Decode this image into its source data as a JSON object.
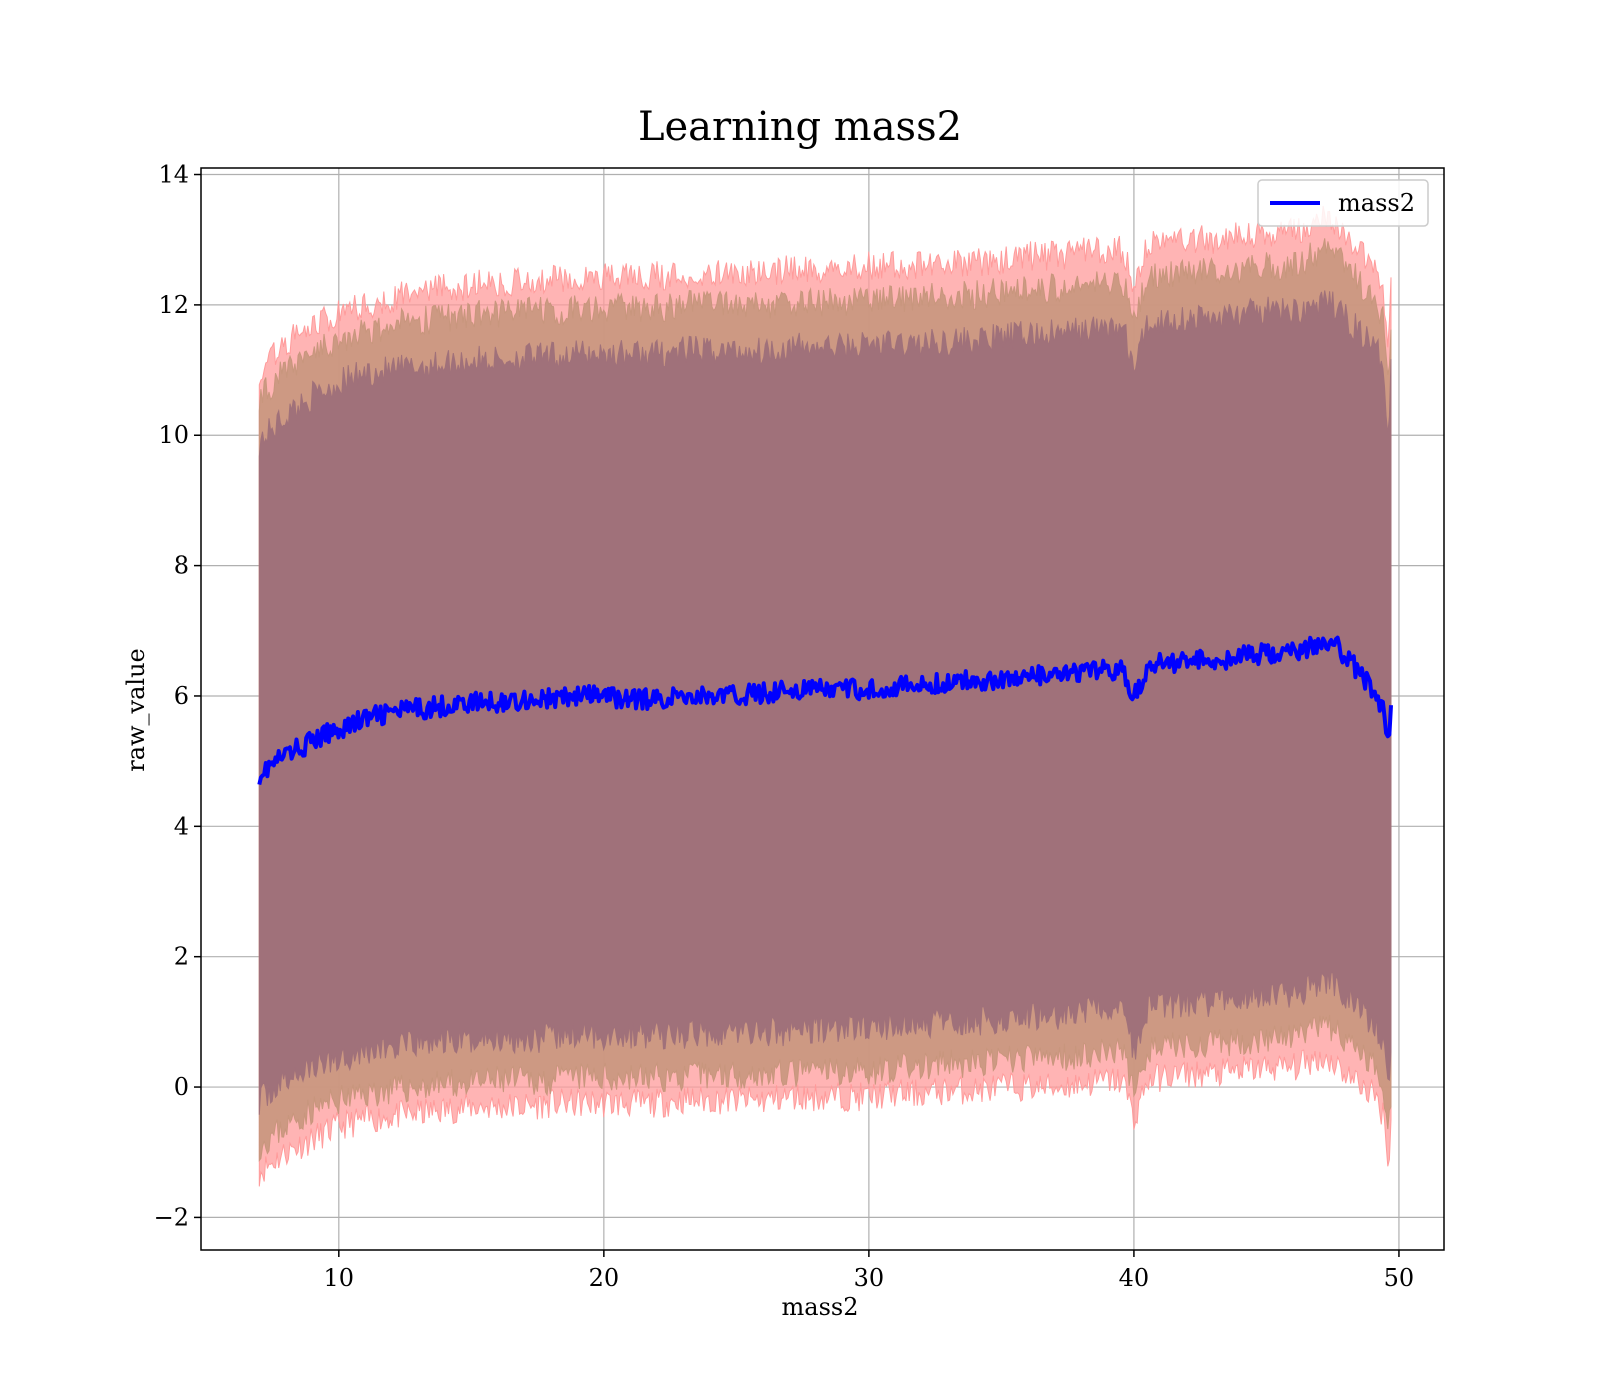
{
  "chart_data": {
    "type": "line",
    "title": "Learning mass2",
    "xlabel": "mass2",
    "ylabel": "raw_value",
    "xlim": [
      4.8,
      51.7
    ],
    "ylim": [
      -2.5,
      14.1
    ],
    "xticks": [
      10,
      20,
      30,
      40,
      50
    ],
    "yticks": [
      -2,
      0,
      2,
      4,
      6,
      8,
      10,
      12,
      14
    ],
    "xtick_labels": [
      "10",
      "20",
      "30",
      "40",
      "50"
    ],
    "ytick_labels": [
      "−2",
      "0",
      "2",
      "4",
      "6",
      "8",
      "10",
      "12",
      "14"
    ],
    "grid": true,
    "legend_position": "top-right",
    "series": [
      {
        "name": "mass2",
        "color": "#0000ff",
        "x": [
          7.0,
          8.0,
          9.0,
          10.0,
          11.0,
          12.0,
          13.0,
          14.0,
          15.0,
          16.0,
          17.0,
          18.0,
          19.0,
          20.0,
          21.0,
          22.0,
          23.0,
          24.0,
          25.0,
          26.0,
          27.0,
          28.0,
          29.0,
          30.0,
          31.0,
          32.0,
          33.0,
          34.0,
          35.0,
          36.0,
          37.0,
          38.0,
          39.0,
          39.6,
          40.0,
          40.5,
          41.0,
          42.0,
          43.0,
          44.0,
          45.0,
          46.0,
          47.0,
          47.5,
          48.0,
          49.0,
          49.4,
          49.6,
          49.7
        ],
        "y": [
          4.8,
          5.1,
          5.3,
          5.5,
          5.65,
          5.75,
          5.8,
          5.85,
          5.9,
          5.9,
          5.95,
          5.95,
          6.0,
          6.0,
          5.95,
          5.95,
          6.0,
          6.0,
          6.0,
          6.05,
          6.1,
          6.1,
          6.1,
          6.1,
          6.15,
          6.15,
          6.2,
          6.25,
          6.25,
          6.3,
          6.3,
          6.35,
          6.4,
          6.4,
          5.95,
          6.45,
          6.5,
          6.55,
          6.55,
          6.6,
          6.65,
          6.65,
          6.8,
          6.85,
          6.6,
          6.1,
          5.85,
          5.2,
          5.8
        ],
        "band1_lower": [
          -1.3,
          -1.0,
          -0.8,
          -0.6,
          -0.5,
          -0.45,
          -0.4,
          -0.35,
          -0.3,
          -0.3,
          -0.3,
          -0.25,
          -0.25,
          -0.25,
          -0.25,
          -0.25,
          -0.2,
          -0.2,
          -0.2,
          -0.2,
          -0.15,
          -0.15,
          -0.15,
          -0.15,
          -0.1,
          -0.1,
          -0.05,
          -0.05,
          0.0,
          0.0,
          0.0,
          0.05,
          0.1,
          0.1,
          -0.5,
          0.1,
          0.15,
          0.2,
          0.2,
          0.25,
          0.3,
          0.3,
          0.45,
          0.4,
          0.2,
          -0.1,
          -0.4,
          -1.1,
          -0.6
        ],
        "band1_upper": [
          11.0,
          11.4,
          11.7,
          11.85,
          12.0,
          12.1,
          12.2,
          12.25,
          12.3,
          12.35,
          12.35,
          12.4,
          12.45,
          12.45,
          12.45,
          12.45,
          12.45,
          12.5,
          12.5,
          12.5,
          12.55,
          12.55,
          12.55,
          12.6,
          12.6,
          12.6,
          12.65,
          12.65,
          12.7,
          12.75,
          12.75,
          12.8,
          12.85,
          12.85,
          12.2,
          12.9,
          12.95,
          13.0,
          13.0,
          13.05,
          13.1,
          13.1,
          13.3,
          13.3,
          13.1,
          12.6,
          12.3,
          11.2,
          12.3
        ],
        "band2_lower": [
          -0.9,
          -0.6,
          -0.35,
          -0.2,
          -0.1,
          -0.05,
          0.0,
          0.05,
          0.05,
          0.1,
          0.1,
          0.1,
          0.15,
          0.15,
          0.15,
          0.15,
          0.15,
          0.2,
          0.2,
          0.2,
          0.2,
          0.25,
          0.25,
          0.25,
          0.3,
          0.3,
          0.35,
          0.35,
          0.4,
          0.45,
          0.45,
          0.5,
          0.55,
          0.55,
          -0.1,
          0.55,
          0.6,
          0.65,
          0.65,
          0.7,
          0.75,
          0.75,
          0.9,
          0.9,
          0.7,
          0.35,
          0.05,
          -0.6,
          -0.1
        ],
        "band2_upper": [
          10.6,
          11.0,
          11.3,
          11.45,
          11.6,
          11.7,
          11.75,
          11.8,
          11.85,
          11.85,
          11.9,
          11.9,
          11.95,
          11.95,
          11.95,
          11.95,
          12.0,
          12.0,
          12.0,
          12.0,
          12.05,
          12.05,
          12.05,
          12.1,
          12.1,
          12.1,
          12.15,
          12.15,
          12.2,
          12.25,
          12.25,
          12.3,
          12.35,
          12.35,
          11.7,
          12.4,
          12.45,
          12.5,
          12.5,
          12.55,
          12.6,
          12.6,
          12.8,
          12.8,
          12.6,
          12.1,
          11.8,
          10.7,
          11.8
        ],
        "band3_lower": [
          -0.2,
          0.1,
          0.3,
          0.45,
          0.55,
          0.6,
          0.65,
          0.7,
          0.7,
          0.75,
          0.75,
          0.75,
          0.8,
          0.8,
          0.8,
          0.8,
          0.8,
          0.85,
          0.85,
          0.85,
          0.85,
          0.9,
          0.9,
          0.9,
          0.95,
          0.95,
          1.0,
          1.0,
          1.05,
          1.1,
          1.1,
          1.15,
          1.2,
          1.2,
          0.5,
          1.2,
          1.25,
          1.3,
          1.3,
          1.35,
          1.4,
          1.4,
          1.6,
          1.6,
          1.4,
          1.0,
          0.7,
          0.0,
          0.5
        ],
        "band3_upper": [
          9.9,
          10.3,
          10.6,
          10.8,
          10.95,
          11.0,
          11.05,
          11.1,
          11.15,
          11.15,
          11.2,
          11.2,
          11.25,
          11.25,
          11.25,
          11.25,
          11.3,
          11.3,
          11.3,
          11.3,
          11.35,
          11.35,
          11.35,
          11.4,
          11.4,
          11.4,
          11.45,
          11.45,
          11.5,
          11.55,
          11.55,
          11.6,
          11.65,
          11.65,
          11.0,
          11.7,
          11.75,
          11.8,
          11.8,
          11.85,
          11.9,
          11.9,
          12.0,
          12.0,
          11.8,
          11.4,
          11.1,
          10.1,
          11.1
        ]
      }
    ],
    "band_colors": {
      "band1": "#ff9b9b",
      "band2": "#c8967d",
      "band3": "#a0717a"
    }
  }
}
